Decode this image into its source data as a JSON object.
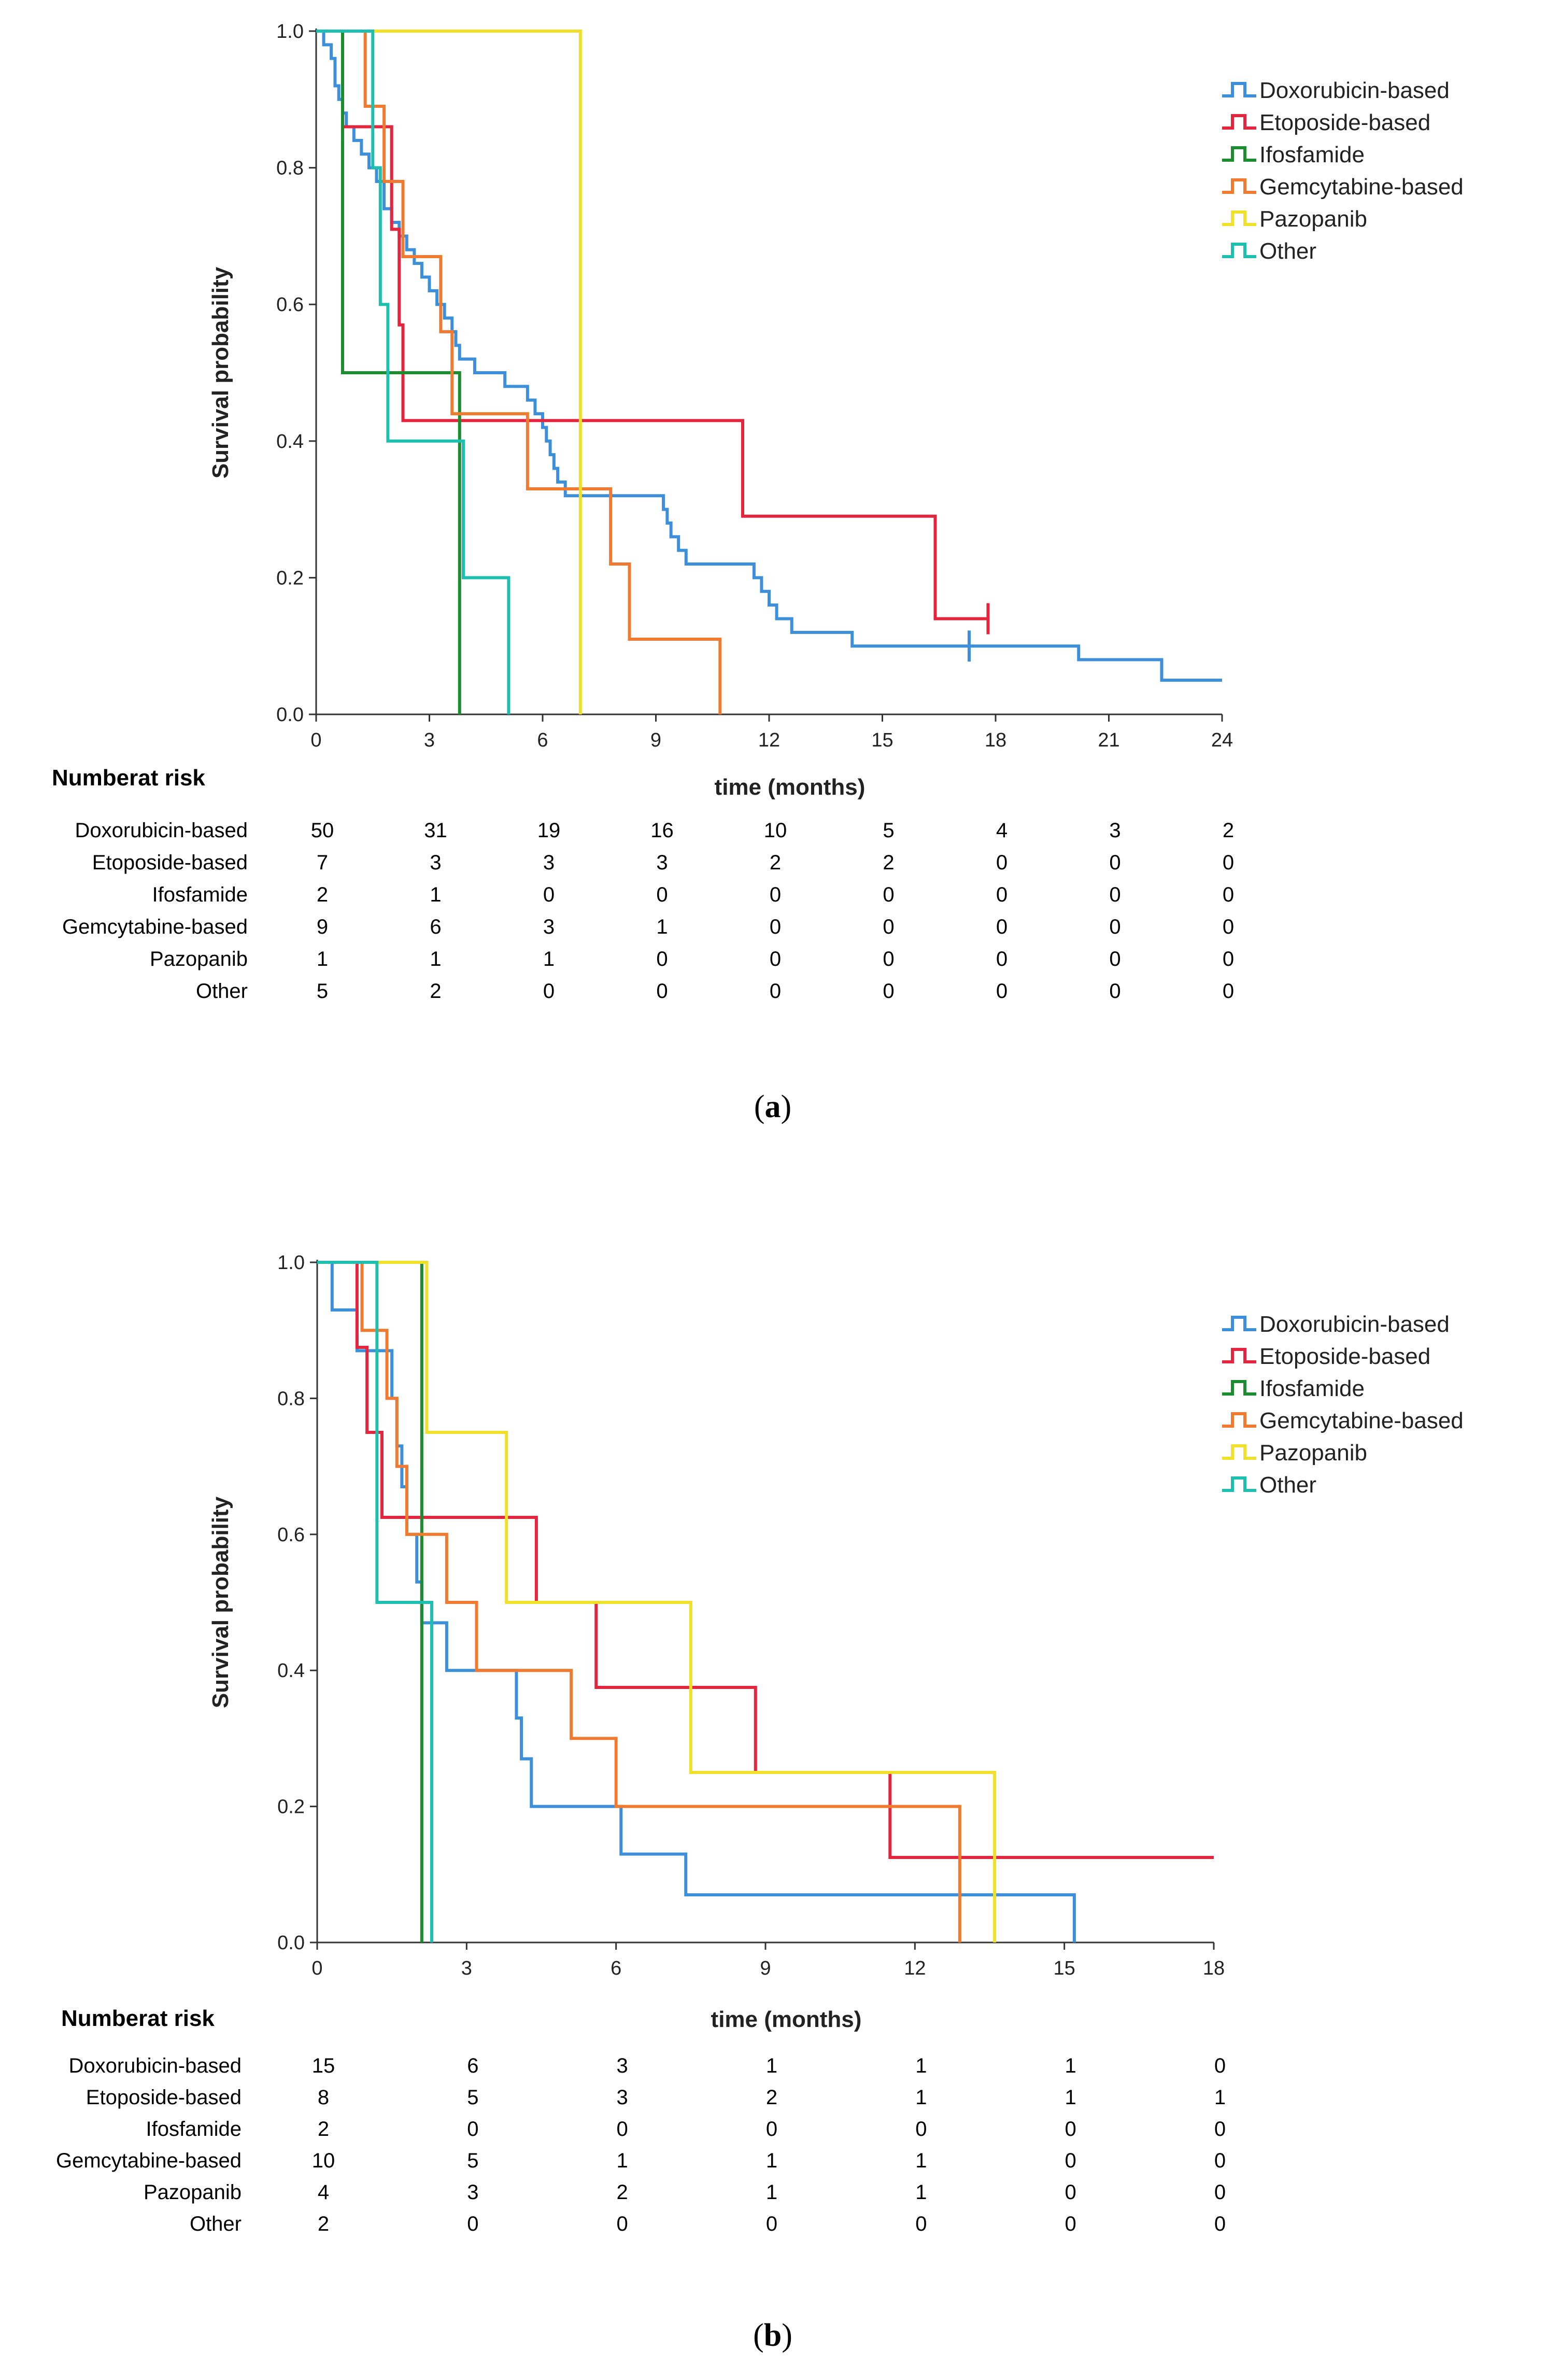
{
  "chart_data": [
    {
      "type": "line",
      "panel": "a",
      "caption_letter": "a",
      "xlabel": "time (months)",
      "ylabel": "Survival probability",
      "xlim": [
        0,
        24
      ],
      "ylim": [
        0,
        1
      ],
      "x_ticks": [
        0,
        3,
        6,
        9,
        12,
        15,
        18,
        21,
        24
      ],
      "y_ticks": [
        "0.0",
        "0.2",
        "0.4",
        "0.6",
        "0.8",
        "1.0"
      ],
      "legend_position": "top-right",
      "series": [
        {
          "name": "Doxorubicin-based",
          "color": "#3d8fd9",
          "steps": [
            [
              0,
              1.0
            ],
            [
              0.2,
              0.98
            ],
            [
              0.4,
              0.96
            ],
            [
              0.5,
              0.92
            ],
            [
              0.6,
              0.9
            ],
            [
              0.7,
              0.88
            ],
            [
              0.8,
              0.86
            ],
            [
              1.0,
              0.84
            ],
            [
              1.2,
              0.82
            ],
            [
              1.4,
              0.8
            ],
            [
              1.6,
              0.78
            ],
            [
              1.8,
              0.74
            ],
            [
              2.0,
              0.72
            ],
            [
              2.2,
              0.7
            ],
            [
              2.4,
              0.68
            ],
            [
              2.6,
              0.66
            ],
            [
              2.8,
              0.64
            ],
            [
              3.0,
              0.62
            ],
            [
              3.2,
              0.6
            ],
            [
              3.4,
              0.58
            ],
            [
              3.6,
              0.56
            ],
            [
              3.7,
              0.54
            ],
            [
              3.8,
              0.52
            ],
            [
              4.2,
              0.5
            ],
            [
              5.0,
              0.48
            ],
            [
              5.6,
              0.46
            ],
            [
              5.8,
              0.44
            ],
            [
              6.0,
              0.42
            ],
            [
              6.1,
              0.4
            ],
            [
              6.2,
              0.38
            ],
            [
              6.3,
              0.36
            ],
            [
              6.4,
              0.34
            ],
            [
              6.6,
              0.32
            ],
            [
              9.2,
              0.3
            ],
            [
              9.3,
              0.28
            ],
            [
              9.4,
              0.26
            ],
            [
              9.6,
              0.24
            ],
            [
              9.8,
              0.22
            ],
            [
              11.6,
              0.2
            ],
            [
              11.8,
              0.18
            ],
            [
              12.0,
              0.16
            ],
            [
              12.2,
              0.14
            ],
            [
              12.6,
              0.12
            ],
            [
              14.2,
              0.1
            ],
            [
              20.2,
              0.08
            ],
            [
              22.4,
              0.05
            ],
            [
              24,
              0.05
            ]
          ],
          "censor": [
            [
              17.3,
              0.1
            ]
          ]
        },
        {
          "name": "Etoposide-based",
          "color": "#e3263e",
          "steps": [
            [
              0,
              1.0
            ],
            [
              0.7,
              0.86
            ],
            [
              2.0,
              0.71
            ],
            [
              2.2,
              0.57
            ],
            [
              2.3,
              0.43
            ],
            [
              11.3,
              0.29
            ],
            [
              16.4,
              0.14
            ],
            [
              17.8,
              0.14
            ]
          ],
          "censor": [
            [
              17.8,
              0.14
            ]
          ]
        },
        {
          "name": "Ifosfamide",
          "color": "#1d8c2e",
          "steps": [
            [
              0,
              1.0
            ],
            [
              0.7,
              0.5
            ],
            [
              3.8,
              0.0
            ]
          ],
          "censor": []
        },
        {
          "name": "Gemcytabine-based",
          "color": "#f07b30",
          "steps": [
            [
              0,
              1.0
            ],
            [
              1.3,
              0.89
            ],
            [
              1.8,
              0.78
            ],
            [
              2.3,
              0.67
            ],
            [
              3.3,
              0.56
            ],
            [
              3.6,
              0.44
            ],
            [
              5.6,
              0.33
            ],
            [
              7.8,
              0.22
            ],
            [
              8.3,
              0.11
            ],
            [
              10.7,
              0.0
            ]
          ],
          "censor": []
        },
        {
          "name": "Pazopanib",
          "color": "#f0e02a",
          "steps": [
            [
              0,
              1.0
            ],
            [
              7.0,
              0.0
            ]
          ],
          "censor": []
        },
        {
          "name": "Other",
          "color": "#1fbfb0",
          "steps": [
            [
              0,
              1.0
            ],
            [
              1.5,
              0.8
            ],
            [
              1.7,
              0.6
            ],
            [
              1.9,
              0.4
            ],
            [
              3.9,
              0.2
            ],
            [
              5.1,
              0.0
            ]
          ],
          "censor": []
        }
      ],
      "risk_table": {
        "title": "Numberat risk",
        "rows": [
          {
            "label": "Doxorubicin-based",
            "values": [
              "50",
              "31",
              "19",
              "16",
              "10",
              "5",
              "4",
              "3",
              "2"
            ]
          },
          {
            "label": "Etoposide-based",
            "values": [
              "7",
              "3",
              "3",
              "3",
              "2",
              "2",
              "0",
              "0",
              "0"
            ]
          },
          {
            "label": "Ifosfamide",
            "values": [
              "2",
              "1",
              "0",
              "0",
              "0",
              "0",
              "0",
              "0",
              "0"
            ]
          },
          {
            "label": "Gemcytabine-based",
            "values": [
              "9",
              "6",
              "3",
              "1",
              "0",
              "0",
              "0",
              "0",
              "0"
            ]
          },
          {
            "label": "Pazopanib",
            "values": [
              "1",
              "1",
              "1",
              "0",
              "0",
              "0",
              "0",
              "0",
              "0"
            ]
          },
          {
            "label": "Other",
            "values": [
              "5",
              "2",
              "0",
              "0",
              "0",
              "0",
              "0",
              "0",
              "0"
            ]
          }
        ]
      }
    },
    {
      "type": "line",
      "panel": "b",
      "caption_letter": "b",
      "xlabel": "time (months)",
      "ylabel": "Survival probability",
      "xlim": [
        0,
        18
      ],
      "ylim": [
        0,
        1
      ],
      "x_ticks": [
        0,
        3,
        6,
        9,
        12,
        15,
        18
      ],
      "y_ticks": [
        "0.0",
        "0.2",
        "0.4",
        "0.6",
        "0.8",
        "1.0"
      ],
      "legend_position": "top-right",
      "series": [
        {
          "name": "Doxorubicin-based",
          "color": "#3d8fd9",
          "steps": [
            [
              0,
              1.0
            ],
            [
              0.3,
              0.93
            ],
            [
              0.8,
              0.87
            ],
            [
              1.5,
              0.8
            ],
            [
              1.6,
              0.73
            ],
            [
              1.7,
              0.67
            ],
            [
              1.8,
              0.6
            ],
            [
              2.0,
              0.53
            ],
            [
              2.1,
              0.47
            ],
            [
              2.6,
              0.4
            ],
            [
              4.0,
              0.33
            ],
            [
              4.1,
              0.27
            ],
            [
              4.3,
              0.2
            ],
            [
              6.1,
              0.13
            ],
            [
              7.4,
              0.07
            ],
            [
              15.2,
              0.0
            ]
          ],
          "censor": []
        },
        {
          "name": "Etoposide-based",
          "color": "#e3263e",
          "steps": [
            [
              0,
              1.0
            ],
            [
              0.8,
              0.875
            ],
            [
              1.0,
              0.75
            ],
            [
              1.3,
              0.625
            ],
            [
              4.4,
              0.5
            ],
            [
              5.6,
              0.375
            ],
            [
              8.8,
              0.25
            ],
            [
              11.5,
              0.125
            ],
            [
              18,
              0.125
            ]
          ],
          "censor": []
        },
        {
          "name": "Ifosfamide",
          "color": "#1d8c2e",
          "steps": [
            [
              0,
              1.0
            ],
            [
              2.1,
              0.0
            ]
          ],
          "censor": []
        },
        {
          "name": "Gemcytabine-based",
          "color": "#f07b30",
          "steps": [
            [
              0,
              1.0
            ],
            [
              0.9,
              0.9
            ],
            [
              1.4,
              0.8
            ],
            [
              1.6,
              0.7
            ],
            [
              1.8,
              0.6
            ],
            [
              2.6,
              0.5
            ],
            [
              3.2,
              0.4
            ],
            [
              5.1,
              0.3
            ],
            [
              6.0,
              0.2
            ],
            [
              12.9,
              0.1
            ],
            [
              12.9,
              0.0
            ]
          ],
          "censor": []
        },
        {
          "name": "Pazopanib",
          "color": "#f0e02a",
          "steps": [
            [
              0,
              1.0
            ],
            [
              2.2,
              0.75
            ],
            [
              3.8,
              0.5
            ],
            [
              7.5,
              0.25
            ],
            [
              13.6,
              0.0
            ]
          ],
          "censor": []
        },
        {
          "name": "Other",
          "color": "#1fbfb0",
          "steps": [
            [
              0,
              1.0
            ],
            [
              1.2,
              0.5
            ],
            [
              2.3,
              0.0
            ]
          ],
          "censor": []
        }
      ],
      "risk_table": {
        "title": "Numberat risk",
        "rows": [
          {
            "label": "Doxorubicin-based",
            "values": [
              "15",
              "6",
              "3",
              "1",
              "1",
              "1",
              "0"
            ]
          },
          {
            "label": "Etoposide-based",
            "values": [
              "8",
              "5",
              "3",
              "2",
              "1",
              "1",
              "1"
            ]
          },
          {
            "label": "Ifosfamide",
            "values": [
              "2",
              "0",
              "0",
              "0",
              "0",
              "0",
              "0"
            ]
          },
          {
            "label": "Gemcytabine-based",
            "values": [
              "10",
              "5",
              "1",
              "1",
              "1",
              "0",
              "0"
            ]
          },
          {
            "label": "Pazopanib",
            "values": [
              "4",
              "3",
              "2",
              "1",
              "1",
              "0",
              "0"
            ]
          },
          {
            "label": "Other",
            "values": [
              "2",
              "0",
              "0",
              "0",
              "0",
              "0",
              "0"
            ]
          }
        ]
      }
    }
  ]
}
